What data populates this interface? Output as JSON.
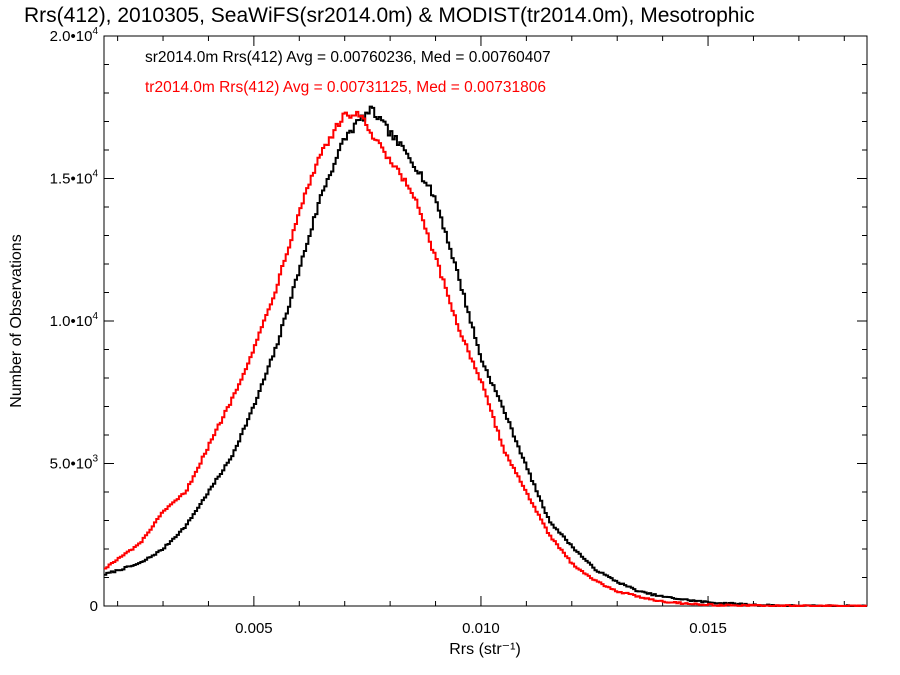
{
  "chart_data": {
    "type": "line",
    "title": "Rrs(412), 2010305, SeaWiFS(sr2014.0m) & MODIST(tr2014.0m), Mesotrophic",
    "xlabel": "Rrs (str⁻¹)",
    "ylabel": "Number of Observations",
    "xlim": [
      0.0017,
      0.0185
    ],
    "ylim": [
      0,
      20000
    ],
    "x_ticks": [
      {
        "value": 0.005,
        "label": "0.005"
      },
      {
        "value": 0.01,
        "label": "0.010"
      },
      {
        "value": 0.015,
        "label": "0.015"
      }
    ],
    "y_ticks": [
      {
        "value": 0,
        "mantissa": "0",
        "exp": ""
      },
      {
        "value": 5000,
        "mantissa": "5.0•10",
        "exp": "3"
      },
      {
        "value": 10000,
        "mantissa": "1.0•10",
        "exp": "4"
      },
      {
        "value": 15000,
        "mantissa": "1.5•10",
        "exp": "4"
      },
      {
        "value": 20000,
        "mantissa": "2.0•10",
        "exp": "4"
      }
    ],
    "grid": false,
    "legend_position": "top-left",
    "series": [
      {
        "name": "sr2014.0m",
        "color": "#000000",
        "legend_text": "sr2014.0m Rrs(412) Avg = 0.00760236, Med = 0.00760407",
        "points": [
          [
            0.0017,
            1100
          ],
          [
            0.0025,
            1500
          ],
          [
            0.003,
            2000
          ],
          [
            0.0035,
            2800
          ],
          [
            0.004,
            4000
          ],
          [
            0.0045,
            5200
          ],
          [
            0.005,
            7000
          ],
          [
            0.0055,
            9100
          ],
          [
            0.006,
            11800
          ],
          [
            0.0065,
            14500
          ],
          [
            0.007,
            16400
          ],
          [
            0.0073,
            17000
          ],
          [
            0.0076,
            17400
          ],
          [
            0.008,
            16600
          ],
          [
            0.0085,
            15600
          ],
          [
            0.009,
            14300
          ],
          [
            0.0095,
            11600
          ],
          [
            0.01,
            8700
          ],
          [
            0.0105,
            6900
          ],
          [
            0.011,
            4900
          ],
          [
            0.0115,
            3000
          ],
          [
            0.012,
            2100
          ],
          [
            0.0125,
            1300
          ],
          [
            0.013,
            850
          ],
          [
            0.0135,
            500
          ],
          [
            0.014,
            330
          ],
          [
            0.0145,
            220
          ],
          [
            0.015,
            130
          ],
          [
            0.016,
            40
          ],
          [
            0.017,
            0
          ],
          [
            0.0185,
            0
          ]
        ]
      },
      {
        "name": "tr2014.0m",
        "color": "#ff0000",
        "legend_text": "tr2014.0m Rrs(412) Avg = 0.00731125, Med = 0.00731806",
        "points": [
          [
            0.0017,
            1300
          ],
          [
            0.0025,
            2200
          ],
          [
            0.003,
            3300
          ],
          [
            0.0035,
            4000
          ],
          [
            0.004,
            5600
          ],
          [
            0.0045,
            7200
          ],
          [
            0.005,
            9000
          ],
          [
            0.0055,
            11200
          ],
          [
            0.006,
            13900
          ],
          [
            0.0065,
            16000
          ],
          [
            0.007,
            17200
          ],
          [
            0.0073,
            17300
          ],
          [
            0.0076,
            16500
          ],
          [
            0.008,
            15600
          ],
          [
            0.0085,
            14500
          ],
          [
            0.009,
            12200
          ],
          [
            0.0095,
            9800
          ],
          [
            0.01,
            7900
          ],
          [
            0.0105,
            5500
          ],
          [
            0.011,
            4000
          ],
          [
            0.0115,
            2500
          ],
          [
            0.012,
            1500
          ],
          [
            0.0125,
            900
          ],
          [
            0.013,
            520
          ],
          [
            0.0135,
            320
          ],
          [
            0.014,
            160
          ],
          [
            0.0145,
            90
          ],
          [
            0.015,
            40
          ],
          [
            0.016,
            10
          ],
          [
            0.017,
            0
          ],
          [
            0.0185,
            0
          ]
        ]
      }
    ]
  }
}
